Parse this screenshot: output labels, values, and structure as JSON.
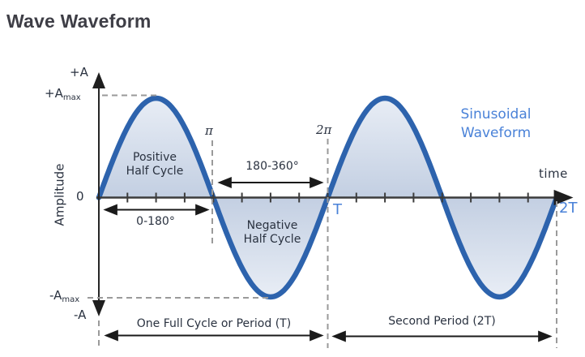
{
  "page": {
    "title": "Wave Waveform"
  },
  "colors": {
    "title_text": "#3e3e46",
    "diagram_text": "#2a3240",
    "blue_label": "#4a82d8",
    "wave_stroke": "#2d63ad",
    "fill_near_axis": "#c3cfe2",
    "fill_at_extremes": "#e9eef6",
    "axis": "#3c3c3c",
    "dashed_guides": "#9a9a9a",
    "annotation_arrows": "#1a1a1a"
  },
  "labels": {
    "y_top": "+A",
    "y_plus_max": "+A",
    "y_plus_max_sub": "max",
    "y_zero": "0",
    "y_minus_max": "-A",
    "y_minus_max_sub": "max",
    "y_bottom": "-A",
    "y_axis_title": "Amplitude",
    "x_axis_title": "time",
    "pi": "π",
    "two_pi": "2π",
    "t": "T",
    "two_t": "2T",
    "positive_half_line1": "Positive",
    "positive_half_line2": "Half Cycle",
    "negative_half_line1": "Negative",
    "negative_half_line2": "Half Cycle",
    "range_first_half": "0-180°",
    "range_second_half": "180-360°",
    "period_first": "One Full Cycle or Period (T)",
    "period_second": "Second Period (2T)",
    "wave_name_line1": "Sinusoidal",
    "wave_name_line2": "Waveform"
  },
  "chart_data": {
    "type": "line",
    "title": "Wave Waveform",
    "function": "y = A_max * sin(x)",
    "periods_shown": 2,
    "x_domain_radians": [
      0,
      12.566
    ],
    "x_key_points": [
      {
        "x_rad": 0,
        "label": "0"
      },
      {
        "x_rad": 3.1416,
        "label": "π"
      },
      {
        "x_rad": 6.2832,
        "label": "2π / T"
      },
      {
        "x_rad": 12.566,
        "label": "2T"
      }
    ],
    "x_minor_ticks_per_period": 8,
    "y_levels": [
      "+A",
      "+Amax",
      "0",
      "-Amax",
      "-A"
    ],
    "ylabel": "Amplitude",
    "xlabel": "time",
    "annotations": [
      "Positive Half Cycle 0-180°",
      "Negative Half Cycle 180-360°",
      "One Full Cycle or Period (T)",
      "Second Period (2T)",
      "Sinusoidal Waveform"
    ],
    "legend": "none",
    "grid": "off"
  }
}
